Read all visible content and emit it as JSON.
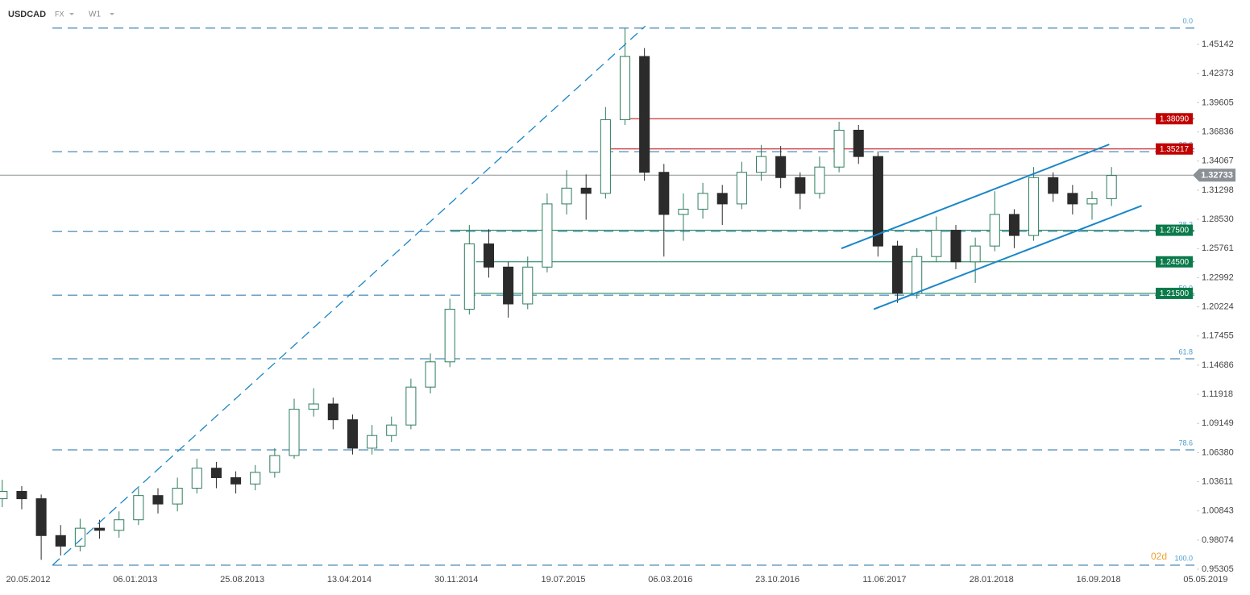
{
  "header": {
    "symbol": "USDCAD",
    "market": "FX",
    "interval": "W1"
  },
  "chart_data": {
    "type": "candlestick",
    "x": [
      -8,
      -2,
      4,
      10,
      16,
      22,
      28,
      34,
      40,
      46,
      52,
      58,
      64,
      70,
      76,
      82,
      88,
      94,
      100,
      106,
      112,
      118,
      124,
      130,
      136,
      142,
      148,
      154,
      160,
      166,
      172,
      178,
      184,
      190,
      196,
      202,
      208,
      214,
      220,
      226,
      232,
      238,
      244,
      250,
      256,
      262,
      268,
      274,
      280,
      286,
      292,
      298,
      304,
      310,
      316,
      322,
      328,
      334
    ],
    "open": [
      1.02,
      1.027,
      1.02,
      0.985,
      0.975,
      0.992,
      0.99,
      1.0,
      1.023,
      1.015,
      1.03,
      1.049,
      1.04,
      1.034,
      1.045,
      1.061,
      1.105,
      1.11,
      1.095,
      1.068,
      1.08,
      1.09,
      1.126,
      1.15,
      1.2,
      1.262,
      1.24,
      1.205,
      1.24,
      1.3,
      1.315,
      1.31,
      1.38,
      1.44,
      1.33,
      1.29,
      1.295,
      1.31,
      1.3,
      1.33,
      1.345,
      1.325,
      1.31,
      1.335,
      1.37,
      1.345,
      1.26,
      1.215,
      1.25,
      1.275,
      1.245,
      1.26,
      1.29,
      1.27,
      1.325,
      1.31,
      1.3,
      1.305
    ],
    "high": [
      1.038,
      1.032,
      1.024,
      0.995,
      1.001,
      1.0,
      1.008,
      1.03,
      1.03,
      1.04,
      1.058,
      1.055,
      1.046,
      1.052,
      1.068,
      1.115,
      1.125,
      1.116,
      1.1,
      1.09,
      1.098,
      1.134,
      1.158,
      1.21,
      1.28,
      1.276,
      1.245,
      1.25,
      1.31,
      1.332,
      1.328,
      1.392,
      1.467,
      1.448,
      1.338,
      1.31,
      1.32,
      1.318,
      1.34,
      1.356,
      1.355,
      1.33,
      1.345,
      1.378,
      1.375,
      1.35,
      1.265,
      1.258,
      1.288,
      1.28,
      1.268,
      1.312,
      1.295,
      1.335,
      1.33,
      1.318,
      1.312,
      1.335
    ],
    "low": [
      1.012,
      1.01,
      0.962,
      0.966,
      0.97,
      0.982,
      0.983,
      0.995,
      1.006,
      1.008,
      1.025,
      1.03,
      1.025,
      1.028,
      1.04,
      1.058,
      1.098,
      1.086,
      1.062,
      1.062,
      1.074,
      1.086,
      1.12,
      1.145,
      1.195,
      1.23,
      1.192,
      1.2,
      1.235,
      1.29,
      1.285,
      1.305,
      1.375,
      1.322,
      1.25,
      1.265,
      1.286,
      1.28,
      1.295,
      1.322,
      1.315,
      1.295,
      1.305,
      1.33,
      1.338,
      1.25,
      1.206,
      1.21,
      1.245,
      1.238,
      1.225,
      1.255,
      1.258,
      1.265,
      1.302,
      1.29,
      1.285,
      1.298
    ],
    "close": [
      1.027,
      1.02,
      0.985,
      0.975,
      0.992,
      0.99,
      1.0,
      1.023,
      1.015,
      1.03,
      1.049,
      1.04,
      1.034,
      1.045,
      1.061,
      1.105,
      1.11,
      1.095,
      1.068,
      1.08,
      1.09,
      1.126,
      1.15,
      1.2,
      1.262,
      1.24,
      1.205,
      1.24,
      1.3,
      1.315,
      1.31,
      1.38,
      1.44,
      1.33,
      1.29,
      1.295,
      1.31,
      1.3,
      1.33,
      1.345,
      1.325,
      1.31,
      1.335,
      1.37,
      1.345,
      1.26,
      1.215,
      1.25,
      1.275,
      1.245,
      1.26,
      1.29,
      1.27,
      1.325,
      1.31,
      1.3,
      1.305,
      1.327
    ],
    "up_color": "#2e7d5b",
    "down_color": "#2b2b2b",
    "xlim": [
      -8.7,
      360.3
    ],
    "xticks": [
      {
        "value": 0,
        "label": "20.05.2012"
      },
      {
        "value": 33,
        "label": "06.01.2013"
      },
      {
        "value": 66,
        "label": "25.08.2013"
      },
      {
        "value": 99,
        "label": "13.04.2014"
      },
      {
        "value": 132,
        "label": "30.11.2014"
      },
      {
        "value": 165,
        "label": "19.07.2015"
      },
      {
        "value": 198,
        "label": "06.03.2016"
      },
      {
        "value": 231,
        "label": "23.10.2016"
      },
      {
        "value": 264,
        "label": "11.06.2017"
      },
      {
        "value": 297,
        "label": "28.01.2018"
      },
      {
        "value": 330,
        "label": "16.09.2018"
      },
      {
        "value": 363,
        "label": "05.05.2019"
      }
    ],
    "ylim": [
      0.95,
      1.486
    ],
    "yticks": [
      1.45142,
      1.42373,
      1.39605,
      1.36836,
      1.34067,
      1.31298,
      {
        "value": 1.2853,
        "label": "1.28530"
      },
      1.25761,
      1.22992,
      1.20224,
      1.17455,
      1.14686,
      1.11918,
      1.09149,
      {
        "value": 1.0638,
        "label": "1.06380"
      },
      1.03611,
      1.00843,
      0.98074,
      0.95305
    ],
    "fibonacci": [
      {
        "label": "0.0",
        "value": 1.467
      },
      {
        "label": "23.6",
        "value": 1.3496
      },
      {
        "label": "38.2",
        "value": 1.2738
      },
      {
        "label": "50.0",
        "value": 1.2133
      },
      {
        "label": "61.8",
        "value": 1.1529
      },
      {
        "label": "78.6",
        "value": 1.0664
      },
      {
        "label": "100.0",
        "value": 0.9569
      }
    ],
    "fib_color": "#1f6fa3",
    "levels": [
      {
        "value": 1.3809,
        "label": "1.38090",
        "color": "#c00000",
        "start": 185
      },
      {
        "value": 1.35217,
        "label": "1.35217",
        "color": "#c00000",
        "start": 178
      },
      {
        "value": 1.275,
        "label": "1.27500",
        "color": "#0b7a4b",
        "start": 130
      },
      {
        "value": 1.245,
        "label": "1.24500",
        "color": "#0b7a4b",
        "start": 138
      },
      {
        "value": 1.215,
        "label": "1.21500",
        "color": "#0b7a4b",
        "start": 136
      }
    ],
    "current": {
      "value": 1.32733,
      "color": "#8a9096"
    },
    "trendlines": [
      {
        "points": [
          [
            7.5,
            0.9569
          ],
          [
            190.3,
            1.469
          ]
        ],
        "dashed": true
      },
      {
        "points": [
          [
            250.7,
            1.2577
          ],
          [
            333.3,
            1.3565
          ]
        ],
        "dashed": false
      },
      {
        "points": [
          [
            260.7,
            1.2
          ],
          [
            343.3,
            1.2983
          ]
        ],
        "dashed": false
      }
    ],
    "trend_color": "#1a86c8",
    "watermark": "02d"
  }
}
